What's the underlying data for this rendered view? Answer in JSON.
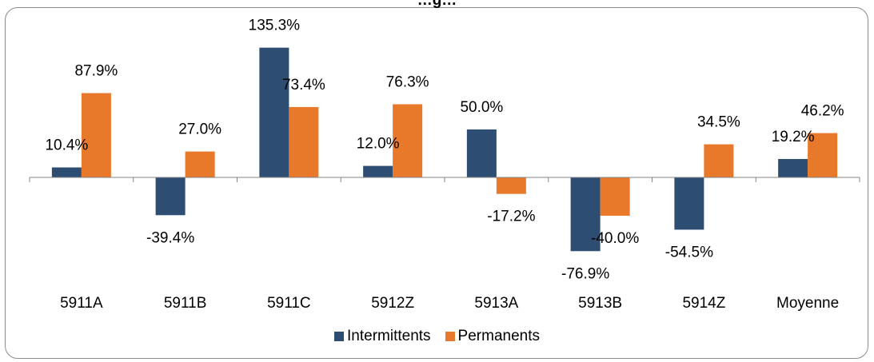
{
  "chart_data": {
    "type": "bar",
    "title": "…g…",
    "categories": [
      "5911A",
      "5911B",
      "5911C",
      "5912Z",
      "5913A",
      "5913B",
      "5914Z",
      "Moyenne"
    ],
    "series": [
      {
        "name": "Intermittents",
        "color": "#2e4d72",
        "values": [
          10.4,
          -39.4,
          135.3,
          12.0,
          50.0,
          -76.9,
          -54.5,
          19.2
        ],
        "labels": [
          "10.4%",
          "-39.4%",
          "135.3%",
          "12.0%",
          "50.0%",
          "-76.9%",
          "-54.5%",
          "19.2%"
        ]
      },
      {
        "name": "Permanents",
        "color": "#e8782a",
        "values": [
          87.9,
          27.0,
          73.4,
          76.3,
          -17.2,
          -40.0,
          34.5,
          46.2
        ],
        "labels": [
          "87.9%",
          "27.0%",
          "73.4%",
          "76.3%",
          "-17.2%",
          "-40.0%",
          "34.5%",
          "46.2%"
        ]
      }
    ],
    "ylim": [
      -90,
      145
    ],
    "legend": "bottom"
  }
}
